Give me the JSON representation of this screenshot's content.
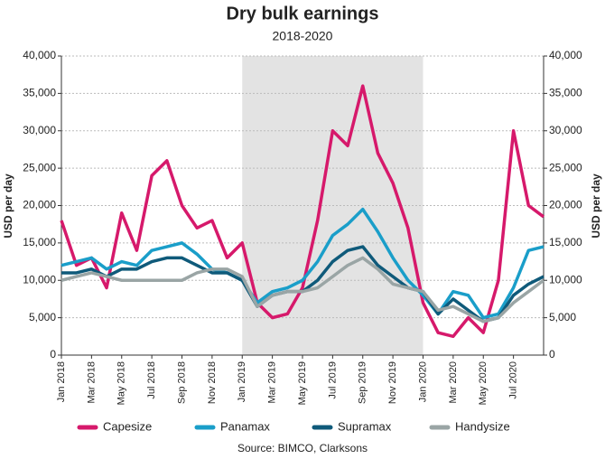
{
  "chart_data": {
    "type": "line",
    "title": "Dry bulk earnings",
    "subtitle": "2018-2020",
    "y_label": "USD per day",
    "y2_label": "USD per day",
    "source": "Source: BIMCO, Clarksons",
    "categories": [
      "Jan 2018",
      null,
      "Mar 2018",
      null,
      "May 2018",
      null,
      "Jul 2018",
      null,
      "Sep 2018",
      null,
      "Nov 2018",
      null,
      "Jan 2019",
      null,
      "Mar 2019",
      null,
      "May 2019",
      null,
      "Jul 2019",
      null,
      "Sep 2019",
      null,
      "Nov 2019",
      null,
      "Jan 2020",
      null,
      "Mar 2020",
      null,
      "May 2020",
      null,
      "Jul 2020",
      null,
      null
    ],
    "shade": {
      "from": 12,
      "to": 24,
      "color": "#e3e3e3"
    },
    "series": [
      {
        "name": "Capesize",
        "color": "#d6196b",
        "values": [
          18000,
          12000,
          13000,
          9000,
          19000,
          14000,
          24000,
          26000,
          20000,
          17000,
          18000,
          13000,
          15000,
          7000,
          5000,
          5500,
          9000,
          18000,
          30000,
          28000,
          36000,
          27000,
          23000,
          17000,
          7000,
          3000,
          2500,
          5000,
          3000,
          10000,
          30000,
          20000,
          18500
        ]
      },
      {
        "name": "Panamax",
        "color": "#1a9ec9",
        "values": [
          12000,
          12500,
          13000,
          11500,
          12500,
          12000,
          14000,
          14500,
          15000,
          13500,
          11500,
          11000,
          10000,
          7000,
          8500,
          9000,
          10000,
          12500,
          16000,
          17500,
          19500,
          16500,
          13000,
          10000,
          8000,
          5500,
          8500,
          8000,
          5000,
          5500,
          9000,
          14000,
          14500
        ]
      },
      {
        "name": "Supramax",
        "color": "#0f5a7a",
        "values": [
          11000,
          11000,
          11500,
          10500,
          11500,
          11500,
          12500,
          13000,
          13000,
          12000,
          11000,
          11000,
          10000,
          6500,
          8000,
          8500,
          8500,
          10000,
          12500,
          14000,
          14500,
          12000,
          10500,
          9000,
          8500,
          5500,
          7500,
          6000,
          4500,
          5000,
          8000,
          9500,
          10500
        ]
      },
      {
        "name": "Handysize",
        "color": "#9aa5a5",
        "values": [
          10000,
          10500,
          11000,
          10500,
          10000,
          10000,
          10000,
          10000,
          10000,
          11000,
          11500,
          11500,
          10500,
          6500,
          8000,
          8500,
          8500,
          9000,
          10500,
          12000,
          13000,
          11500,
          9500,
          9000,
          8500,
          6000,
          6500,
          5500,
          4500,
          5000,
          7000,
          8500,
          10000
        ]
      }
    ],
    "ylim": [
      0,
      40000
    ],
    "yticks": [
      0,
      {
        "value": 5000,
        "label": "5,000"
      },
      {
        "value": 10000,
        "label": "10,000"
      },
      {
        "value": 15000,
        "label": "15,000"
      },
      {
        "value": 20000,
        "label": "20,000"
      },
      {
        "value": 25000,
        "label": "25,000"
      },
      {
        "value": 30000,
        "label": "30,000"
      },
      {
        "value": 35000,
        "label": "35,000"
      },
      {
        "value": 40000,
        "label": "40,000"
      }
    ],
    "y2lim": [
      0,
      40000
    ],
    "y2ticks": [
      0,
      {
        "value": 5000,
        "label": "5,000"
      },
      {
        "value": 10000,
        "label": "10,000"
      },
      {
        "value": 15000,
        "label": "15,000"
      },
      {
        "value": 20000,
        "label": "20,000"
      },
      {
        "value": 25000,
        "label": "25,000"
      },
      {
        "value": 30000,
        "label": "30,000"
      },
      {
        "value": 35000,
        "label": "35,000"
      },
      {
        "value": 40000,
        "label": "40,000"
      }
    ],
    "grid": true
  }
}
